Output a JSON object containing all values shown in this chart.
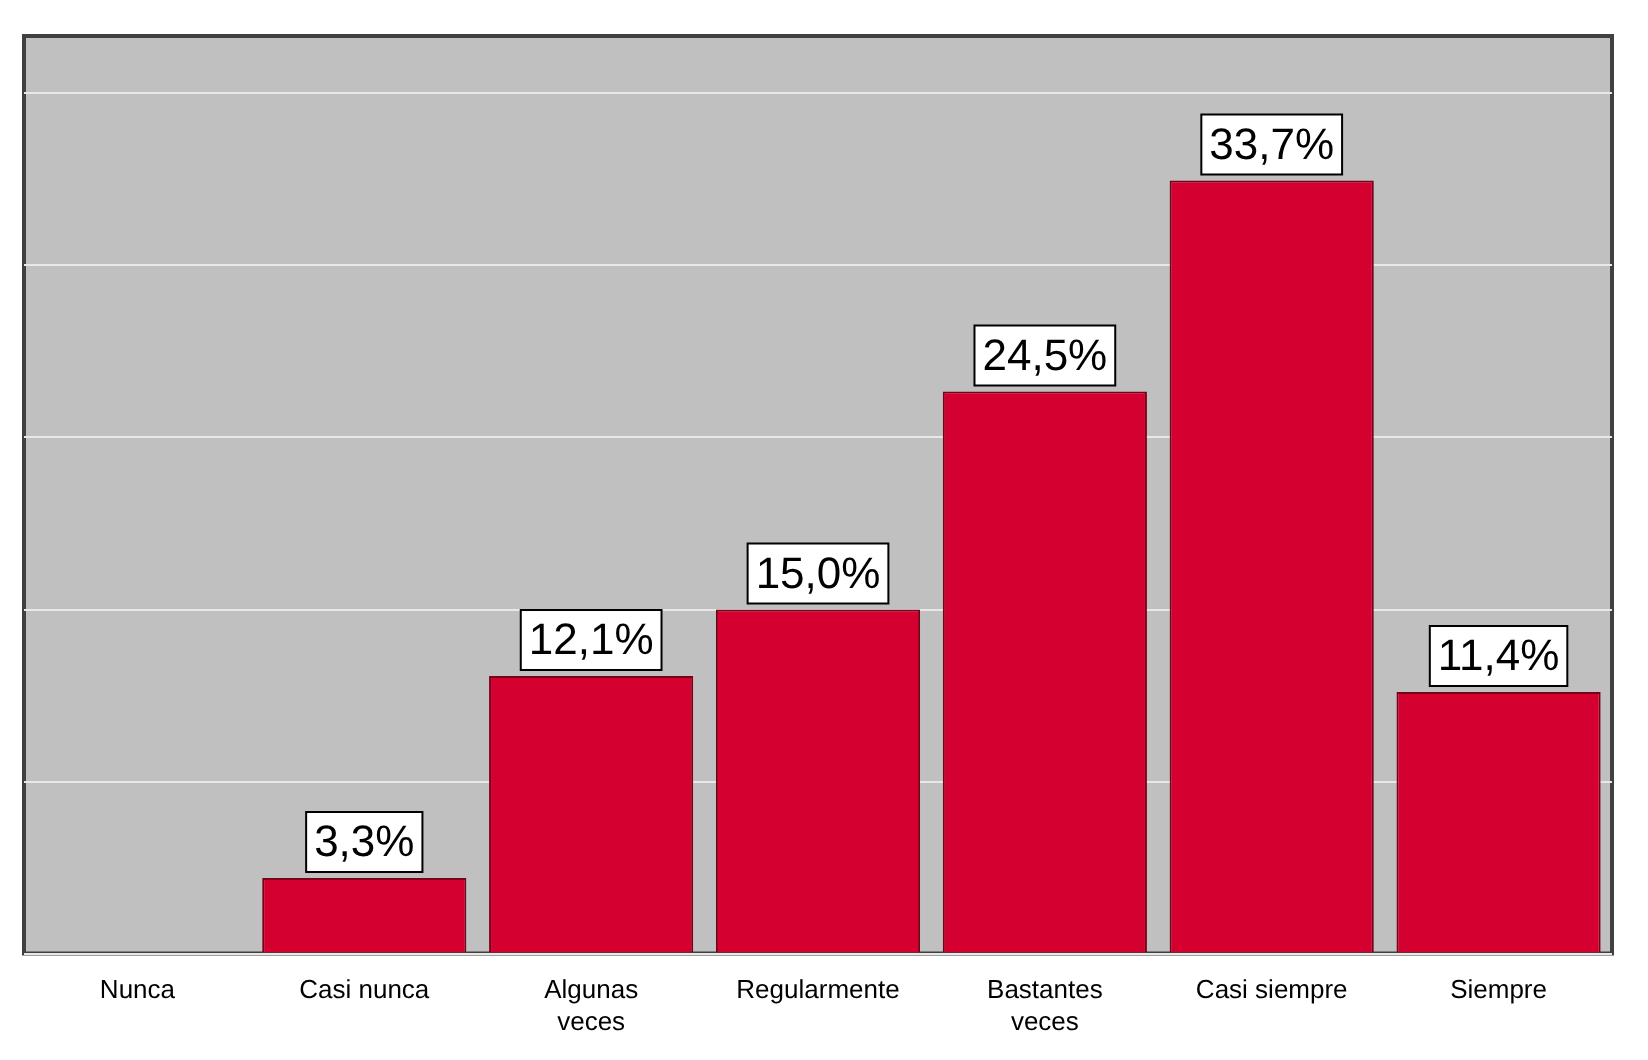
{
  "chart_data": {
    "type": "bar",
    "categories": [
      "Nunca",
      "Casi nunca",
      "Algunas veces",
      "Regularmente",
      "Bastantes veces",
      "Casi siempre",
      "Siempre"
    ],
    "values": [
      null,
      3.3,
      12.1,
      15.0,
      24.5,
      33.7,
      11.4
    ],
    "value_labels": [
      null,
      "3,3%",
      "12,1%",
      "15,0%",
      "24,5%",
      "33,7%",
      "11,4%"
    ],
    "color": "#d4002f",
    "ylim": [
      0,
      40
    ],
    "yticks": [
      {
        "value": 0,
        "label": null
      },
      {
        "value": 7.5,
        "label": null
      },
      {
        "value": 15,
        "label": null
      },
      {
        "value": 22.5,
        "label": null
      },
      {
        "value": 30,
        "label": null
      },
      {
        "value": 37.5,
        "label": null
      }
    ],
    "grid": "y",
    "legend": false,
    "tick_labels": "x"
  }
}
